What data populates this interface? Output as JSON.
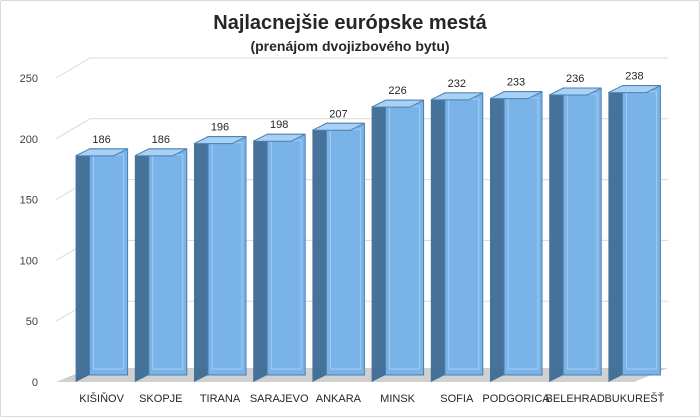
{
  "chart_data": {
    "type": "bar",
    "title": "Najlacnejšie európske mestá",
    "subtitle": "(prenájom dvojizbového bytu)",
    "categories": [
      "KIŠIŇOV",
      "SKOPJE",
      "TIRANA",
      "SARAJEVO",
      "ANKARA",
      "MINSK",
      "SOFIA",
      "PODGORICA",
      "BELEHRAD",
      "BUKUREŠŤ"
    ],
    "values": [
      186,
      186,
      196,
      198,
      207,
      226,
      232,
      233,
      236,
      238
    ],
    "data_labels": [
      "186",
      "186",
      "196",
      "198",
      "207",
      "226",
      "232",
      "233",
      "236",
      "238"
    ],
    "y_ticks": [
      "0",
      "50",
      "100",
      "150",
      "200",
      "250"
    ],
    "ylim": [
      0,
      250
    ],
    "grid": true,
    "legend": "none",
    "style": "3d-column",
    "colors": {
      "bar_front": "#7ab3e8",
      "bar_top": "#a9d0f5",
      "bar_side": "#3d6b95",
      "bar_edge": "#4a7fb0",
      "gridline": "#d9d9d9",
      "floor": "#bfbfbf"
    }
  }
}
